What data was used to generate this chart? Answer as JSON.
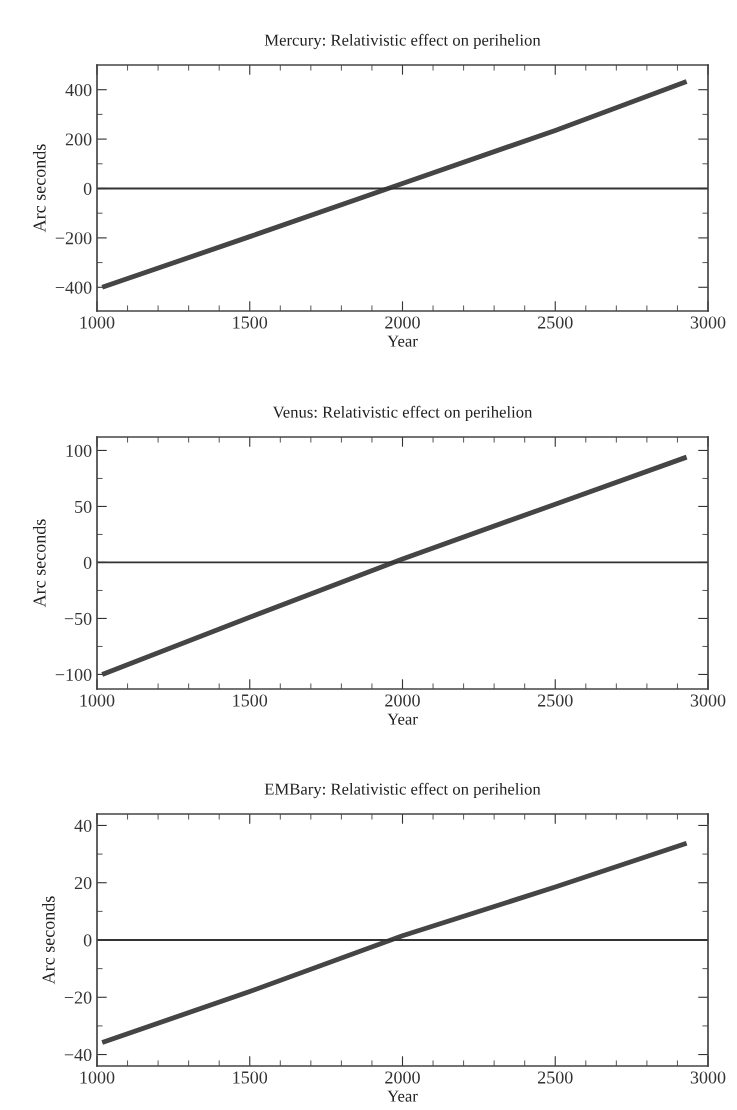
{
  "chart_data": [
    {
      "type": "line",
      "title": "Mercury: Relativistic effect on perihelion",
      "xlabel": "Year",
      "ylabel": "Arc seconds",
      "series": [
        {
          "color": "#454545",
          "x": [
            1017,
            1500,
            2000,
            2500,
            2930
          ],
          "values": [
            -400,
            -195,
            20,
            235,
            433
          ]
        }
      ],
      "xlim": [
        1000,
        3000
      ],
      "ylim": [
        -496,
        500
      ],
      "xticks": [
        1000,
        1500,
        2000,
        2500,
        3000,
        {
          "value": 1100,
          "label": null
        },
        {
          "value": 1200,
          "label": null
        },
        {
          "value": 1300,
          "label": null
        },
        {
          "value": 1400,
          "label": null
        },
        {
          "value": 1600,
          "label": null
        },
        {
          "value": 1700,
          "label": null
        },
        {
          "value": 1800,
          "label": null
        },
        {
          "value": 1900,
          "label": null
        },
        {
          "value": 2100,
          "label": null
        },
        {
          "value": 2200,
          "label": null
        },
        {
          "value": 2300,
          "label": null
        },
        {
          "value": 2400,
          "label": null
        },
        {
          "value": 2600,
          "label": null
        },
        {
          "value": 2700,
          "label": null
        },
        {
          "value": 2800,
          "label": null
        },
        {
          "value": 2900,
          "label": null
        }
      ],
      "yticks": [
        {
          "value": -400,
          "label": "−400"
        },
        {
          "value": -200,
          "label": "−200"
        },
        0,
        200,
        400,
        {
          "value": -300,
          "label": null
        },
        {
          "value": -100,
          "label": null
        },
        {
          "value": 100,
          "label": null
        },
        {
          "value": 300,
          "label": null
        }
      ],
      "ref_lines": [
        {
          "axis": "y",
          "value": 0,
          "color": "#333333"
        }
      ],
      "grid": false,
      "legend": false,
      "marker": "none",
      "line_style": "solid"
    },
    {
      "type": "line",
      "title": "Venus: Relativistic effect on perihelion",
      "xlabel": "Year",
      "ylabel": "Arc seconds",
      "series": [
        {
          "color": "#454545",
          "x": [
            1017,
            1500,
            2000,
            2500,
            2930
          ],
          "values": [
            -100,
            -49,
            3,
            52,
            94
          ]
        }
      ],
      "xlim": [
        1000,
        3000
      ],
      "ylim": [
        -113,
        112
      ],
      "xticks": [
        1000,
        1500,
        2000,
        2500,
        3000,
        {
          "value": 1100,
          "label": null
        },
        {
          "value": 1200,
          "label": null
        },
        {
          "value": 1300,
          "label": null
        },
        {
          "value": 1400,
          "label": null
        },
        {
          "value": 1600,
          "label": null
        },
        {
          "value": 1700,
          "label": null
        },
        {
          "value": 1800,
          "label": null
        },
        {
          "value": 1900,
          "label": null
        },
        {
          "value": 2100,
          "label": null
        },
        {
          "value": 2200,
          "label": null
        },
        {
          "value": 2300,
          "label": null
        },
        {
          "value": 2400,
          "label": null
        },
        {
          "value": 2600,
          "label": null
        },
        {
          "value": 2700,
          "label": null
        },
        {
          "value": 2800,
          "label": null
        },
        {
          "value": 2900,
          "label": null
        }
      ],
      "yticks": [
        {
          "value": -100,
          "label": "−100"
        },
        {
          "value": -50,
          "label": "−50"
        },
        0,
        50,
        100,
        {
          "value": -75,
          "label": null
        },
        {
          "value": -25,
          "label": null
        },
        {
          "value": 25,
          "label": null
        },
        {
          "value": 75,
          "label": null
        }
      ],
      "ref_lines": [
        {
          "axis": "y",
          "value": 0,
          "color": "#333333"
        }
      ],
      "grid": false,
      "legend": false,
      "marker": "none",
      "line_style": "solid"
    },
    {
      "type": "line",
      "title": "EMBary: Relativistic effect on perihelion",
      "xlabel": "Year",
      "ylabel": "Arc seconds",
      "series": [
        {
          "color": "#454545",
          "x": [
            1017,
            1500,
            2000,
            2500,
            2930
          ],
          "values": [
            -35.8,
            -18,
            1.5,
            18.5,
            33.8
          ]
        }
      ],
      "xlim": [
        1000,
        3000
      ],
      "ylim": [
        -44,
        44
      ],
      "xticks": [
        1000,
        1500,
        2000,
        2500,
        3000,
        {
          "value": 1100,
          "label": null
        },
        {
          "value": 1200,
          "label": null
        },
        {
          "value": 1300,
          "label": null
        },
        {
          "value": 1400,
          "label": null
        },
        {
          "value": 1600,
          "label": null
        },
        {
          "value": 1700,
          "label": null
        },
        {
          "value": 1800,
          "label": null
        },
        {
          "value": 1900,
          "label": null
        },
        {
          "value": 2100,
          "label": null
        },
        {
          "value": 2200,
          "label": null
        },
        {
          "value": 2300,
          "label": null
        },
        {
          "value": 2400,
          "label": null
        },
        {
          "value": 2600,
          "label": null
        },
        {
          "value": 2700,
          "label": null
        },
        {
          "value": 2800,
          "label": null
        },
        {
          "value": 2900,
          "label": null
        }
      ],
      "yticks": [
        {
          "value": -40,
          "label": "−40"
        },
        {
          "value": -20,
          "label": "−20"
        },
        0,
        20,
        40,
        {
          "value": -30,
          "label": null
        },
        {
          "value": -10,
          "label": null
        },
        {
          "value": 10,
          "label": null
        },
        {
          "value": 30,
          "label": null
        }
      ],
      "ref_lines": [
        {
          "axis": "y",
          "value": 0,
          "color": "#333333"
        }
      ],
      "grid": false,
      "legend": false,
      "marker": "none",
      "line_style": "solid"
    }
  ]
}
